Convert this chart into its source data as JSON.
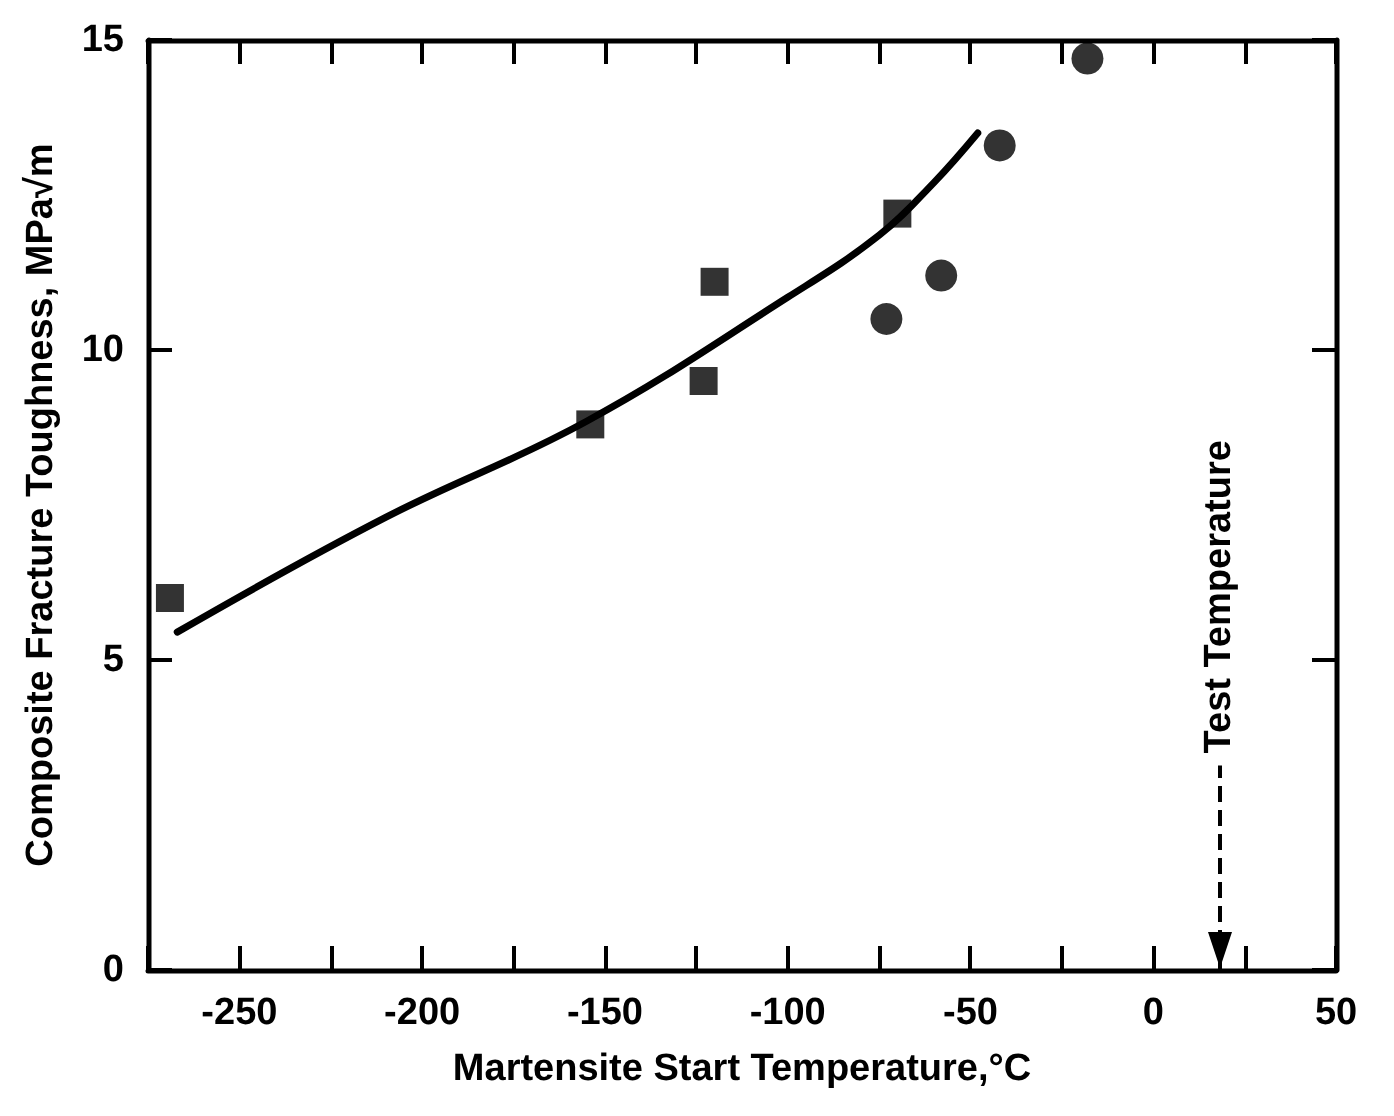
{
  "chart_data": {
    "type": "scatter",
    "xlabel": "Martensite Start Temperature,°C",
    "ylabel": "Composite Fracture Toughness, MPa√m",
    "xlim": [
      -275,
      50
    ],
    "xticks": [
      {
        "value": -275,
        "label": null
      },
      -250,
      {
        "value": -225,
        "label": null
      },
      -200,
      {
        "value": -175,
        "label": null
      },
      -150,
      {
        "value": -125,
        "label": null
      },
      -100,
      {
        "value": -75,
        "label": null
      },
      -50,
      {
        "value": -25,
        "label": null
      },
      0,
      {
        "value": 25,
        "label": null
      },
      50
    ],
    "ylim": [
      0,
      15
    ],
    "yticks": [
      0,
      5,
      10,
      15
    ],
    "grid": false,
    "series": [
      {
        "marker": "square",
        "color": "#000000",
        "x": [
          -269,
          -154,
          -123,
          -120,
          -70
        ],
        "values": [
          6.0,
          8.8,
          9.5,
          11.1,
          12.2
        ]
      },
      {
        "marker": "circle",
        "color": "#000000",
        "x": [
          -73,
          -58,
          -42,
          -18
        ],
        "values": [
          10.5,
          11.2,
          13.3,
          14.7
        ]
      },
      {
        "type": "line",
        "marker": "none",
        "line_style": "solid",
        "color": "#000000",
        "x": [
          -267,
          -210,
          -155,
          -100,
          -75,
          -60,
          -48
        ],
        "values": [
          5.45,
          7.3,
          8.85,
          10.85,
          11.85,
          12.7,
          13.5
        ]
      }
    ],
    "ref_lines": [
      {
        "axis": "x",
        "value": 18,
        "label": "Test Temperature",
        "line_style": "dashed",
        "color": "#000000"
      }
    ]
  }
}
